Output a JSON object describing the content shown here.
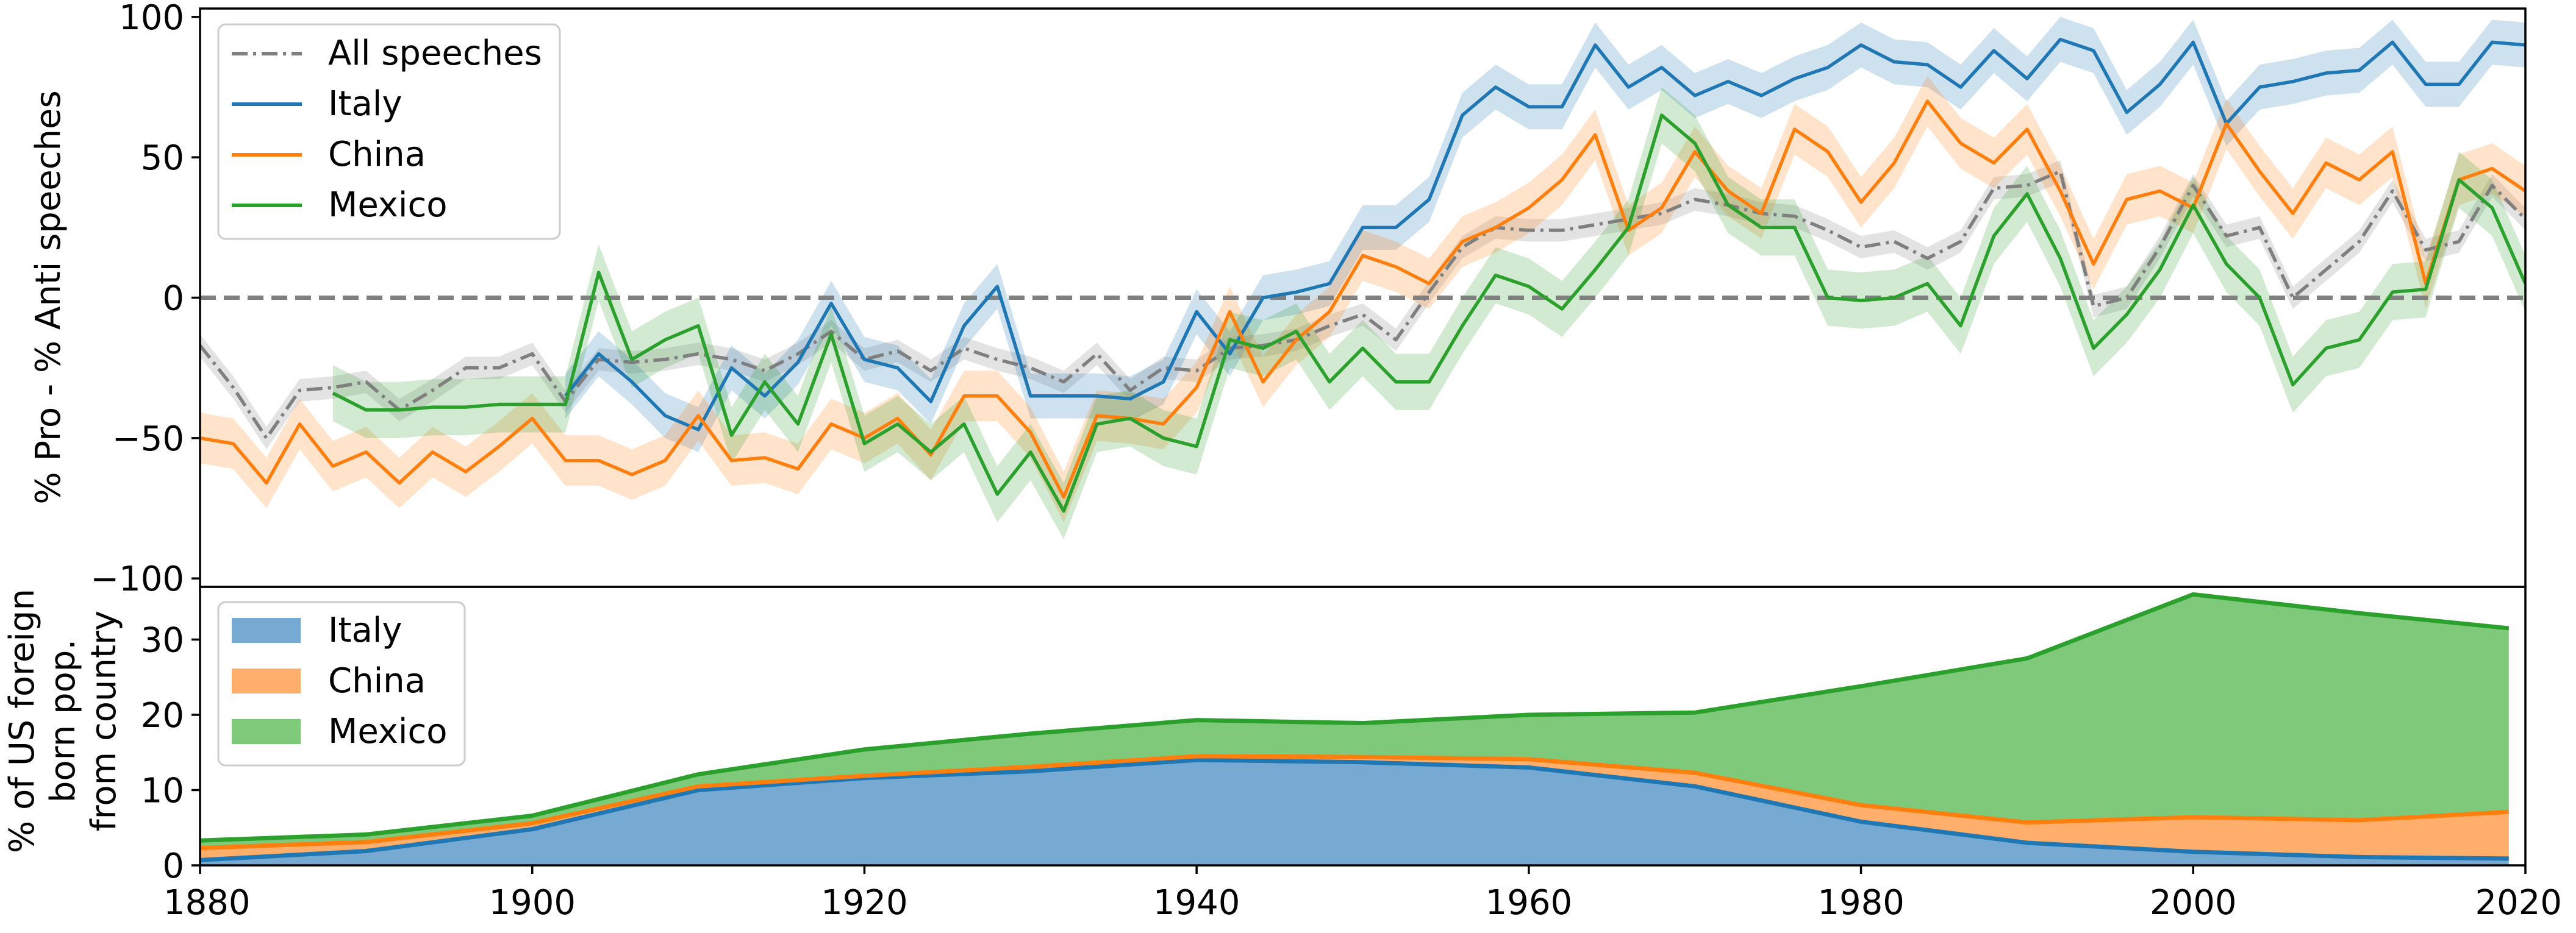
{
  "chart_data": [
    {
      "type": "line",
      "title": "",
      "xlabel": "",
      "ylabel": "% Pro - % Anti speeches",
      "xlim": [
        1880,
        2020
      ],
      "ylim": [
        -103,
        103
      ],
      "yticks": [
        -100,
        -50,
        0,
        50,
        100
      ],
      "ytick_labels": [
        "−100",
        "−50",
        "0",
        "50",
        "100"
      ],
      "reference_line": 0,
      "legend_position": "top-left",
      "series": [
        {
          "name": "All speeches",
          "color": "#7f7f7f",
          "dash": "dashdot",
          "band": 4,
          "x": [
            1880,
            1882,
            1884,
            1886,
            1888,
            1890,
            1892,
            1894,
            1896,
            1898,
            1900,
            1902,
            1904,
            1906,
            1908,
            1910,
            1912,
            1914,
            1916,
            1918,
            1920,
            1922,
            1924,
            1926,
            1928,
            1930,
            1932,
            1934,
            1936,
            1938,
            1940,
            1942,
            1944,
            1946,
            1948,
            1950,
            1952,
            1954,
            1956,
            1958,
            1960,
            1962,
            1964,
            1966,
            1968,
            1970,
            1972,
            1974,
            1976,
            1978,
            1980,
            1982,
            1984,
            1986,
            1988,
            1990,
            1992,
            1994,
            1996,
            1998,
            2000,
            2002,
            2004,
            2006,
            2008,
            2010,
            2012,
            2014,
            2016,
            2018,
            2020
          ],
          "y": [
            -17,
            -32,
            -50,
            -33,
            -32,
            -30,
            -40,
            -33,
            -25,
            -25,
            -20,
            -37,
            -22,
            -23,
            -22,
            -20,
            -22,
            -26,
            -20,
            -12,
            -22,
            -19,
            -26,
            -18,
            -22,
            -25,
            -30,
            -20,
            -33,
            -25,
            -26,
            -18,
            -17,
            -15,
            -10,
            -6,
            -15,
            2,
            18,
            25,
            24,
            24,
            26,
            28,
            30,
            35,
            33,
            30,
            29,
            24,
            18,
            20,
            14,
            20,
            39,
            40,
            45,
            -3,
            0,
            18,
            40,
            22,
            25,
            0,
            10,
            20,
            38,
            17,
            20,
            40,
            28
          ]
        },
        {
          "name": "Italy",
          "color": "#1f77b4",
          "dash": "solid",
          "band": 8,
          "x": [
            1902,
            1904,
            1906,
            1908,
            1910,
            1912,
            1914,
            1916,
            1918,
            1920,
            1922,
            1924,
            1926,
            1928,
            1930,
            1932,
            1934,
            1936,
            1938,
            1940,
            1942,
            1944,
            1946,
            1948,
            1950,
            1952,
            1954,
            1956,
            1958,
            1960,
            1962,
            1964,
            1966,
            1968,
            1970,
            1972,
            1974,
            1976,
            1978,
            1980,
            1982,
            1984,
            1986,
            1988,
            1990,
            1992,
            1994,
            1996,
            1998,
            2000,
            2002,
            2004,
            2006,
            2008,
            2010,
            2012,
            2014,
            2016,
            2018,
            2020
          ],
          "y": [
            -35,
            -20,
            -30,
            -42,
            -47,
            -25,
            -35,
            -23,
            -2,
            -22,
            -25,
            -37,
            -10,
            4,
            -35,
            -35,
            -35,
            -36,
            -30,
            -5,
            -20,
            0,
            2,
            5,
            25,
            25,
            35,
            65,
            75,
            68,
            68,
            90,
            75,
            82,
            72,
            77,
            72,
            78,
            82,
            90,
            84,
            83,
            75,
            88,
            78,
            92,
            88,
            66,
            76,
            91,
            62,
            75,
            77,
            80,
            81,
            91,
            76,
            76,
            91,
            90
          ]
        },
        {
          "name": "China",
          "color": "#ff7f0e",
          "dash": "solid",
          "band": 9,
          "x": [
            1880,
            1882,
            1884,
            1886,
            1888,
            1890,
            1892,
            1894,
            1896,
            1898,
            1900,
            1902,
            1904,
            1906,
            1908,
            1910,
            1912,
            1914,
            1916,
            1918,
            1920,
            1922,
            1924,
            1926,
            1928,
            1930,
            1932,
            1934,
            1936,
            1938,
            1940,
            1942,
            1944,
            1946,
            1948,
            1950,
            1952,
            1954,
            1956,
            1958,
            1960,
            1962,
            1964,
            1966,
            1968,
            1970,
            1972,
            1974,
            1976,
            1978,
            1980,
            1982,
            1984,
            1986,
            1988,
            1990,
            1992,
            1994,
            1996,
            1998,
            2000,
            2002,
            2004,
            2006,
            2008,
            2010,
            2012,
            2014,
            2016,
            2018,
            2020
          ],
          "y": [
            -50,
            -52,
            -66,
            -45,
            -60,
            -55,
            -66,
            -55,
            -62,
            -53,
            -43,
            -58,
            -58,
            -63,
            -58,
            -42,
            -58,
            -57,
            -61,
            -45,
            -50,
            -43,
            -56,
            -35,
            -35,
            -48,
            -71,
            -42,
            -43,
            -45,
            -32,
            -5,
            -30,
            -15,
            -5,
            15,
            11,
            5,
            20,
            25,
            32,
            42,
            58,
            24,
            32,
            52,
            38,
            30,
            60,
            52,
            34,
            48,
            70,
            55,
            48,
            60,
            38,
            12,
            35,
            38,
            32,
            62,
            45,
            30,
            48,
            42,
            52,
            5,
            42,
            46,
            38
          ]
        },
        {
          "name": "Mexico",
          "color": "#2ca02c",
          "dash": "solid",
          "band": 10,
          "x": [
            1888,
            1890,
            1892,
            1894,
            1896,
            1898,
            1900,
            1902,
            1904,
            1906,
            1908,
            1910,
            1912,
            1914,
            1916,
            1918,
            1920,
            1922,
            1924,
            1926,
            1928,
            1930,
            1932,
            1934,
            1936,
            1938,
            1940,
            1942,
            1944,
            1946,
            1948,
            1950,
            1952,
            1954,
            1956,
            1958,
            1960,
            1962,
            1964,
            1966,
            1968,
            1970,
            1972,
            1974,
            1976,
            1978,
            1980,
            1982,
            1984,
            1986,
            1988,
            1990,
            1992,
            1994,
            1996,
            1998,
            2000,
            2002,
            2004,
            2006,
            2008,
            2010,
            2012,
            2014,
            2016,
            2018,
            2020
          ],
          "y": [
            -34,
            -40,
            -40,
            -39,
            -39,
            -38,
            -38,
            -38,
            9,
            -22,
            -15,
            -10,
            -49,
            -30,
            -45,
            -13,
            -52,
            -45,
            -55,
            -45,
            -70,
            -55,
            -76,
            -45,
            -43,
            -50,
            -53,
            -15,
            -18,
            -12,
            -30,
            -18,
            -30,
            -30,
            -10,
            8,
            4,
            -4,
            10,
            25,
            65,
            55,
            33,
            25,
            25,
            0,
            -1,
            0,
            5,
            -10,
            22,
            37,
            14,
            -18,
            -6,
            10,
            33,
            12,
            0,
            -31,
            -18,
            -15,
            2,
            3,
            42,
            32,
            5
          ]
        }
      ]
    },
    {
      "type": "area",
      "stacked": true,
      "title": "",
      "xlabel": "",
      "ylabel": [
        "% of US foreign",
        "born pop.",
        "from country"
      ],
      "xlim": [
        1880,
        2020
      ],
      "ylim": [
        0,
        37
      ],
      "yticks": [
        0,
        10,
        20,
        30
      ],
      "xticks": [
        1880,
        1900,
        1920,
        1940,
        1960,
        1980,
        2000,
        2020
      ],
      "legend_position": "top-left",
      "x": [
        1880,
        1890,
        1900,
        1910,
        1920,
        1930,
        1940,
        1950,
        1960,
        1970,
        1980,
        1990,
        2000,
        2010,
        2019
      ],
      "series": [
        {
          "name": "Italy",
          "fill": "#77aad3",
          "line": "#1f77b4",
          "values": [
            0.7,
            1.9,
            4.8,
            10.0,
            11.6,
            12.5,
            14.0,
            13.7,
            13.0,
            10.5,
            5.8,
            3.0,
            1.8,
            1.1,
            0.9
          ]
        },
        {
          "name": "China",
          "fill": "#ffae6b",
          "line": "#ff7f0e",
          "values": [
            1.6,
            1.2,
            0.8,
            0.5,
            0.3,
            0.6,
            0.5,
            0.7,
            1.1,
            1.8,
            2.2,
            2.7,
            4.6,
            4.9,
            6.2
          ]
        },
        {
          "name": "Mexico",
          "fill": "#7fc97a",
          "line": "#2ca02c",
          "values": [
            1.0,
            1.0,
            1.0,
            1.6,
            3.5,
            4.4,
            4.8,
            4.5,
            5.9,
            8.0,
            15.8,
            21.8,
            29.6,
            27.5,
            24.4
          ]
        }
      ]
    }
  ]
}
